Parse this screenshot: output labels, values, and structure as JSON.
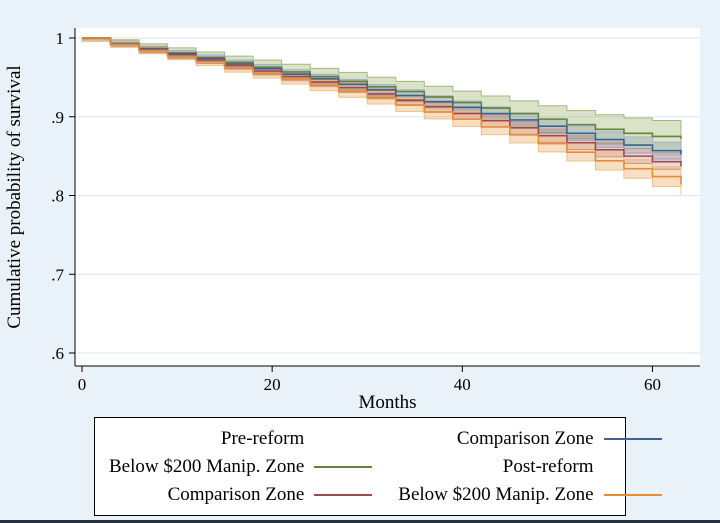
{
  "figure": {
    "background": "#e9f2f8",
    "plot_background": "#ffffff",
    "gridline_color": "#d9e6ee",
    "axis_color": "#000000"
  },
  "chart_data": {
    "type": "line",
    "subtype": "kaplan-meier-step-survival",
    "title": "",
    "xlabel": "Months",
    "ylabel": "Cumulative probability of survival",
    "xlim": [
      0,
      65
    ],
    "ylim": [
      0.6,
      1.0
    ],
    "xticks": [
      0,
      20,
      40,
      60
    ],
    "xtick_labels": [
      "0",
      "20",
      "40",
      "60"
    ],
    "yticks": [
      1.0,
      0.9,
      0.8,
      0.7,
      0.6
    ],
    "ytick_labels": [
      "1",
      ".9",
      ".8",
      ".7",
      ".6"
    ],
    "grid": "horizontal",
    "legend_position": "bottom",
    "x": [
      0,
      3,
      6,
      9,
      12,
      15,
      18,
      21,
      24,
      27,
      30,
      33,
      36,
      39,
      42,
      45,
      48,
      51,
      54,
      57,
      60,
      63
    ],
    "series": [
      {
        "name": "Pre-reform Below $200 Manip. Zone",
        "color": "#66803e",
        "band_fill": "rgba(150,175,95,0.35)",
        "band_stroke": "#a3b87f",
        "ci_start": 0.004,
        "ci_end": 0.021,
        "values": [
          1.0,
          0.993,
          0.987,
          0.981,
          0.975,
          0.969,
          0.963,
          0.957,
          0.951,
          0.945,
          0.938,
          0.932,
          0.925,
          0.918,
          0.911,
          0.904,
          0.897,
          0.89,
          0.884,
          0.879,
          0.875,
          0.872
        ]
      },
      {
        "name": "Pre-reform Comparison Zone",
        "color": "#376491",
        "band_fill": "rgba(110,135,165,0.28)",
        "band_stroke": "#9fb1c6",
        "ci_start": 0.003,
        "ci_end": 0.011,
        "values": [
          1.0,
          0.993,
          0.986,
          0.98,
          0.974,
          0.967,
          0.961,
          0.954,
          0.948,
          0.941,
          0.934,
          0.927,
          0.919,
          0.912,
          0.904,
          0.896,
          0.888,
          0.879,
          0.871,
          0.864,
          0.857,
          0.852
        ]
      },
      {
        "name": "Post-reform Comparison Zone",
        "color": "#9e4952",
        "band_fill": "rgba(180,110,120,0.28)",
        "band_stroke": "#c49199",
        "ci_start": 0.003,
        "ci_end": 0.01,
        "values": [
          1.0,
          0.992,
          0.985,
          0.978,
          0.972,
          0.965,
          0.958,
          0.951,
          0.944,
          0.937,
          0.929,
          0.921,
          0.913,
          0.904,
          0.895,
          0.886,
          0.876,
          0.867,
          0.858,
          0.85,
          0.843,
          0.837
        ]
      },
      {
        "name": "Post-reform Below $200 Manip. Zone",
        "color": "#e78c35",
        "band_fill": "rgba(235,160,80,0.35)",
        "band_stroke": "#eec08a",
        "ci_start": 0.003,
        "ci_end": 0.013,
        "values": [
          1.0,
          0.992,
          0.984,
          0.977,
          0.97,
          0.962,
          0.955,
          0.948,
          0.94,
          0.932,
          0.924,
          0.915,
          0.906,
          0.897,
          0.887,
          0.877,
          0.866,
          0.855,
          0.844,
          0.834,
          0.824,
          0.814
        ]
      }
    ]
  },
  "legend": {
    "rows": [
      [
        {
          "label": "Pre-reform",
          "header": true,
          "color": null
        },
        {
          "label": "Comparison Zone",
          "header": false,
          "color": "#376491"
        }
      ],
      [
        {
          "label": "Below $200 Manip. Zone",
          "header": false,
          "color": "#66803e"
        },
        {
          "label": "Post-reform",
          "header": true,
          "color": null
        }
      ],
      [
        {
          "label": "Comparison Zone",
          "header": false,
          "color": "#9e4952"
        },
        {
          "label": "Below $200 Manip. Zone",
          "header": false,
          "color": "#e78c35"
        }
      ]
    ]
  }
}
